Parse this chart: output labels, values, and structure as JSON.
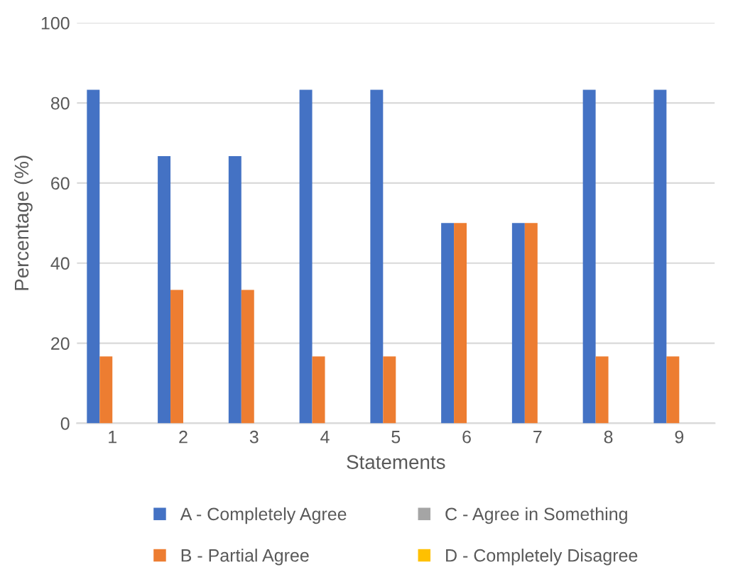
{
  "chart_data": {
    "type": "bar",
    "xlabel": "Statements",
    "ylabel": "Percentage (%)",
    "categories": [
      "1",
      "2",
      "3",
      "4",
      "5",
      "6",
      "7",
      "8",
      "9"
    ],
    "series": [
      {
        "name": "A - Completely Agree",
        "color": "#4472c4",
        "values": [
          83.3,
          66.7,
          66.7,
          83.3,
          83.3,
          50,
          50,
          83.3,
          83.3
        ]
      },
      {
        "name": "B - Partial Agree",
        "color": "#ed7d31",
        "values": [
          16.7,
          33.3,
          33.3,
          16.7,
          16.7,
          50,
          50,
          16.7,
          16.7
        ]
      },
      {
        "name": "C - Agree in Something",
        "color": "#a5a5a5",
        "values": [
          0,
          0,
          0,
          0,
          0,
          0,
          0,
          0,
          0
        ]
      },
      {
        "name": "D - Completely Disagree",
        "color": "#ffc000",
        "values": [
          0,
          0,
          0,
          0,
          0,
          0,
          0,
          0,
          0
        ]
      }
    ],
    "ylim": [
      0,
      100
    ],
    "yticks": [
      0,
      20,
      40,
      60,
      80,
      100
    ],
    "grid": "y",
    "legend": "bottom"
  }
}
